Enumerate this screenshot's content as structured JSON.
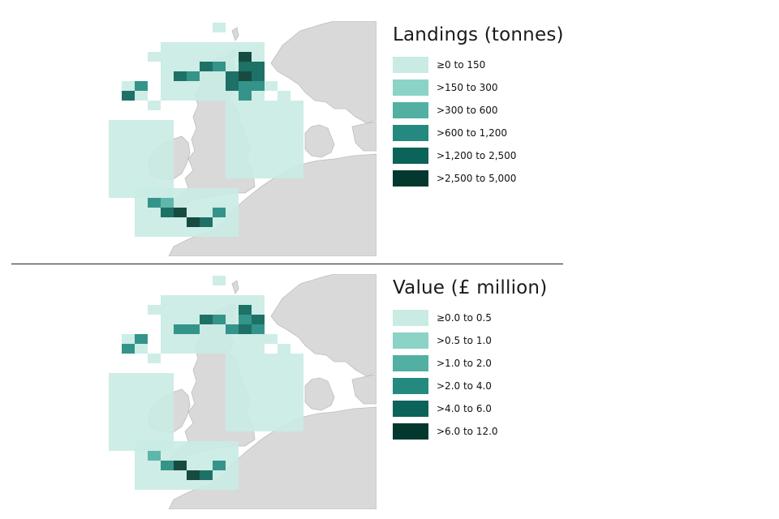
{
  "maps": [
    {
      "id": "landings",
      "title": "Landings (tonnes)",
      "legend": [
        {
          "label": "≥0 to 150",
          "color": "#c9ebe3"
        },
        {
          "label": ">150 to 300",
          "color": "#8ad3c6"
        },
        {
          "label": ">300 to 600",
          "color": "#52b0a3"
        },
        {
          "label": ">600 to 1,200",
          "color": "#248a7f"
        },
        {
          "label": ">1,200 to 2,500",
          "color": "#0b6359"
        },
        {
          "label": ">2,500 to 5,000",
          "color": "#03382f"
        }
      ]
    },
    {
      "id": "value",
      "title": "Value (£ million)",
      "legend": [
        {
          "label": "≥0.0 to 0.5",
          "color": "#c9ebe3"
        },
        {
          "label": ">0.5 to 1.0",
          "color": "#8ad3c6"
        },
        {
          "label": ">1.0 to 2.0",
          "color": "#52b0a3"
        },
        {
          "label": ">2.0 to 4.0",
          "color": "#248a7f"
        },
        {
          "label": ">4.0 to 6.0",
          "color": "#0b6359"
        },
        {
          "label": ">6.0 to 12.0",
          "color": "#03382f"
        }
      ]
    }
  ],
  "map_style": {
    "land_color": "#d9d9d9",
    "border_color": "#bdbdbd",
    "sea_color": "#ffffff"
  }
}
